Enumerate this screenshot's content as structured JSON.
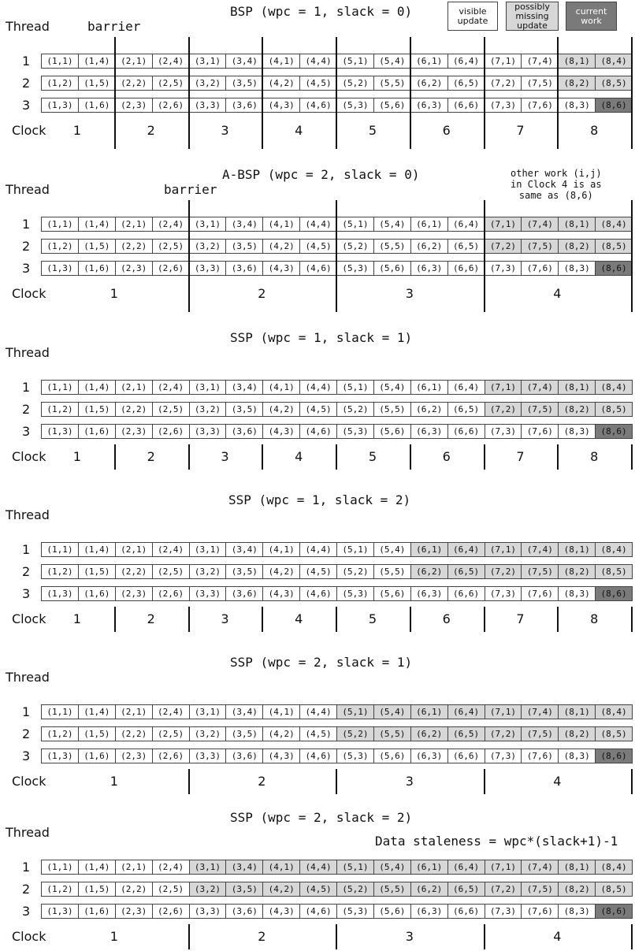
{
  "legend": [
    {
      "label": "visible\nupdate",
      "shade": "white"
    },
    {
      "label": "possibly\nmissing\nupdate",
      "shade": "light"
    },
    {
      "label": "current\nwork",
      "shade": "dark"
    }
  ],
  "colors": {
    "white": "#ffffff",
    "light": "#d7d7d7",
    "dark": "#7a7a7a"
  },
  "common": {
    "thread_label": "Thread",
    "clock_label": "Clock",
    "rows": [
      "1",
      "2",
      "3"
    ]
  },
  "panels": [
    {
      "title": "BSP (wpc = 1, slack = 0)",
      "barrier_label": "barrier",
      "note": "",
      "clocks": [
        "1",
        "2",
        "3",
        "4",
        "5",
        "6",
        "7",
        "8"
      ],
      "rows": [
        {
          "thread": "1",
          "cells": [
            "(1,1)",
            "(1,4)",
            "(2,1)",
            "(2,4)",
            "(3,1)",
            "(3,4)",
            "(4,1)",
            "(4,4)",
            "(5,1)",
            "(5,4)",
            "(6,1)",
            "(6,4)",
            "(7,1)",
            "(7,4)",
            "(8,1)",
            "(8,4)"
          ],
          "shade": "wwwwwwwwwwwwwwll"
        },
        {
          "thread": "2",
          "cells": [
            "(1,2)",
            "(1,5)",
            "(2,2)",
            "(2,5)",
            "(3,2)",
            "(3,5)",
            "(4,2)",
            "(4,5)",
            "(5,2)",
            "(5,5)",
            "(6,2)",
            "(6,5)",
            "(7,2)",
            "(7,5)",
            "(8,2)",
            "(8,5)"
          ],
          "shade": "wwwwwwwwwwwwwwll"
        },
        {
          "thread": "3",
          "cells": [
            "(1,3)",
            "(1,6)",
            "(2,3)",
            "(2,6)",
            "(3,3)",
            "(3,6)",
            "(4,3)",
            "(4,6)",
            "(5,3)",
            "(5,6)",
            "(6,3)",
            "(6,6)",
            "(7,3)",
            "(7,6)",
            "(8,3)",
            "(8,6)"
          ],
          "shade": "wwwwwwwwwwwwwwwd"
        }
      ]
    },
    {
      "title": "A-BSP (wpc = 2, slack = 0)",
      "barrier_label": "barrier",
      "note": "other work (i,j)\nin Clock 4 is as\nsame as (8,6)",
      "clocks": [
        "1",
        "2",
        "3",
        "4"
      ],
      "rows": [
        {
          "thread": "1",
          "cells": [
            "(1,1)",
            "(1,4)",
            "(2,1)",
            "(2,4)",
            "(3,1)",
            "(3,4)",
            "(4,1)",
            "(4,4)",
            "(5,1)",
            "(5,4)",
            "(6,1)",
            "(6,4)",
            "(7,1)",
            "(7,4)",
            "(8,1)",
            "(8,4)"
          ],
          "shade": "wwwwwwwwwwwwllll"
        },
        {
          "thread": "2",
          "cells": [
            "(1,2)",
            "(1,5)",
            "(2,2)",
            "(2,5)",
            "(3,2)",
            "(3,5)",
            "(4,2)",
            "(4,5)",
            "(5,2)",
            "(5,5)",
            "(6,2)",
            "(6,5)",
            "(7,2)",
            "(7,5)",
            "(8,2)",
            "(8,5)"
          ],
          "shade": "wwwwwwwwwwwwllll"
        },
        {
          "thread": "3",
          "cells": [
            "(1,3)",
            "(1,6)",
            "(2,3)",
            "(2,6)",
            "(3,3)",
            "(3,6)",
            "(4,3)",
            "(4,6)",
            "(5,3)",
            "(5,6)",
            "(6,3)",
            "(6,6)",
            "(7,3)",
            "(7,6)",
            "(8,3)",
            "(8,6)"
          ],
          "shade": "wwwwwwwwwwwwwwwd"
        }
      ]
    },
    {
      "title": "SSP (wpc = 1, slack = 1)",
      "barrier_label": "",
      "note": "",
      "clocks": [
        "1",
        "2",
        "3",
        "4",
        "5",
        "6",
        "7",
        "8"
      ],
      "rows": [
        {
          "thread": "1",
          "cells": [
            "(1,1)",
            "(1,4)",
            "(2,1)",
            "(2,4)",
            "(3,1)",
            "(3,4)",
            "(4,1)",
            "(4,4)",
            "(5,1)",
            "(5,4)",
            "(6,1)",
            "(6,4)",
            "(7,1)",
            "(7,4)",
            "(8,1)",
            "(8,4)"
          ],
          "shade": "wwwwwwwwwwwwllll"
        },
        {
          "thread": "2",
          "cells": [
            "(1,2)",
            "(1,5)",
            "(2,2)",
            "(2,5)",
            "(3,2)",
            "(3,5)",
            "(4,2)",
            "(4,5)",
            "(5,2)",
            "(5,5)",
            "(6,2)",
            "(6,5)",
            "(7,2)",
            "(7,5)",
            "(8,2)",
            "(8,5)"
          ],
          "shade": "wwwwwwwwwwwwllll"
        },
        {
          "thread": "3",
          "cells": [
            "(1,3)",
            "(1,6)",
            "(2,3)",
            "(2,6)",
            "(3,3)",
            "(3,6)",
            "(4,3)",
            "(4,6)",
            "(5,3)",
            "(5,6)",
            "(6,3)",
            "(6,6)",
            "(7,3)",
            "(7,6)",
            "(8,3)",
            "(8,6)"
          ],
          "shade": "wwwwwwwwwwwwwwwd"
        }
      ]
    },
    {
      "title": "SSP (wpc = 1, slack = 2)",
      "barrier_label": "",
      "note": "",
      "clocks": [
        "1",
        "2",
        "3",
        "4",
        "5",
        "6",
        "7",
        "8"
      ],
      "rows": [
        {
          "thread": "1",
          "cells": [
            "(1,1)",
            "(1,4)",
            "(2,1)",
            "(2,4)",
            "(3,1)",
            "(3,4)",
            "(4,1)",
            "(4,4)",
            "(5,1)",
            "(5,4)",
            "(6,1)",
            "(6,4)",
            "(7,1)",
            "(7,4)",
            "(8,1)",
            "(8,4)"
          ],
          "shade": "wwwwwwwwwwllllll"
        },
        {
          "thread": "2",
          "cells": [
            "(1,2)",
            "(1,5)",
            "(2,2)",
            "(2,5)",
            "(3,2)",
            "(3,5)",
            "(4,2)",
            "(4,5)",
            "(5,2)",
            "(5,5)",
            "(6,2)",
            "(6,5)",
            "(7,2)",
            "(7,5)",
            "(8,2)",
            "(8,5)"
          ],
          "shade": "wwwwwwwwwwllllll"
        },
        {
          "thread": "3",
          "cells": [
            "(1,3)",
            "(1,6)",
            "(2,3)",
            "(2,6)",
            "(3,3)",
            "(3,6)",
            "(4,3)",
            "(4,6)",
            "(5,3)",
            "(5,6)",
            "(6,3)",
            "(6,6)",
            "(7,3)",
            "(7,6)",
            "(8,3)",
            "(8,6)"
          ],
          "shade": "wwwwwwwwwwwwwwwd"
        }
      ]
    },
    {
      "title": "SSP (wpc = 2, slack = 1)",
      "barrier_label": "",
      "note": "",
      "clocks": [
        "1",
        "2",
        "3",
        "4"
      ],
      "rows": [
        {
          "thread": "1",
          "cells": [
            "(1,1)",
            "(1,4)",
            "(2,1)",
            "(2,4)",
            "(3,1)",
            "(3,4)",
            "(4,1)",
            "(4,4)",
            "(5,1)",
            "(5,4)",
            "(6,1)",
            "(6,4)",
            "(7,1)",
            "(7,4)",
            "(8,1)",
            "(8,4)"
          ],
          "shade": "wwwwwwwwllllllll"
        },
        {
          "thread": "2",
          "cells": [
            "(1,2)",
            "(1,5)",
            "(2,2)",
            "(2,5)",
            "(3,2)",
            "(3,5)",
            "(4,2)",
            "(4,5)",
            "(5,2)",
            "(5,5)",
            "(6,2)",
            "(6,5)",
            "(7,2)",
            "(7,5)",
            "(8,2)",
            "(8,5)"
          ],
          "shade": "wwwwwwwwllllllll"
        },
        {
          "thread": "3",
          "cells": [
            "(1,3)",
            "(1,6)",
            "(2,3)",
            "(2,6)",
            "(3,3)",
            "(3,6)",
            "(4,3)",
            "(4,6)",
            "(5,3)",
            "(5,6)",
            "(6,3)",
            "(6,6)",
            "(7,3)",
            "(7,6)",
            "(8,3)",
            "(8,6)"
          ],
          "shade": "wwwwwwwwwwwwwwwd"
        }
      ]
    },
    {
      "title": "SSP (wpc = 2, slack = 2)",
      "barrier_label": "",
      "note": "Data staleness = wpc*(slack+1)-1",
      "clocks": [
        "1",
        "2",
        "3",
        "4"
      ],
      "rows": [
        {
          "thread": "1",
          "cells": [
            "(1,1)",
            "(1,4)",
            "(2,1)",
            "(2,4)",
            "(3,1)",
            "(3,4)",
            "(4,1)",
            "(4,4)",
            "(5,1)",
            "(5,4)",
            "(6,1)",
            "(6,4)",
            "(7,1)",
            "(7,4)",
            "(8,1)",
            "(8,4)"
          ],
          "shade": "wwwwllllllllllll"
        },
        {
          "thread": "2",
          "cells": [
            "(1,2)",
            "(1,5)",
            "(2,2)",
            "(2,5)",
            "(3,2)",
            "(3,5)",
            "(4,2)",
            "(4,5)",
            "(5,2)",
            "(5,5)",
            "(6,2)",
            "(6,5)",
            "(7,2)",
            "(7,5)",
            "(8,2)",
            "(8,5)"
          ],
          "shade": "wwwwllllllllllll"
        },
        {
          "thread": "3",
          "cells": [
            "(1,3)",
            "(1,6)",
            "(2,3)",
            "(2,6)",
            "(3,3)",
            "(3,6)",
            "(4,3)",
            "(4,6)",
            "(5,3)",
            "(5,6)",
            "(6,3)",
            "(6,6)",
            "(7,3)",
            "(7,6)",
            "(8,3)",
            "(8,6)"
          ],
          "shade": "wwwwwwwwwwwwwwwd"
        }
      ]
    }
  ]
}
